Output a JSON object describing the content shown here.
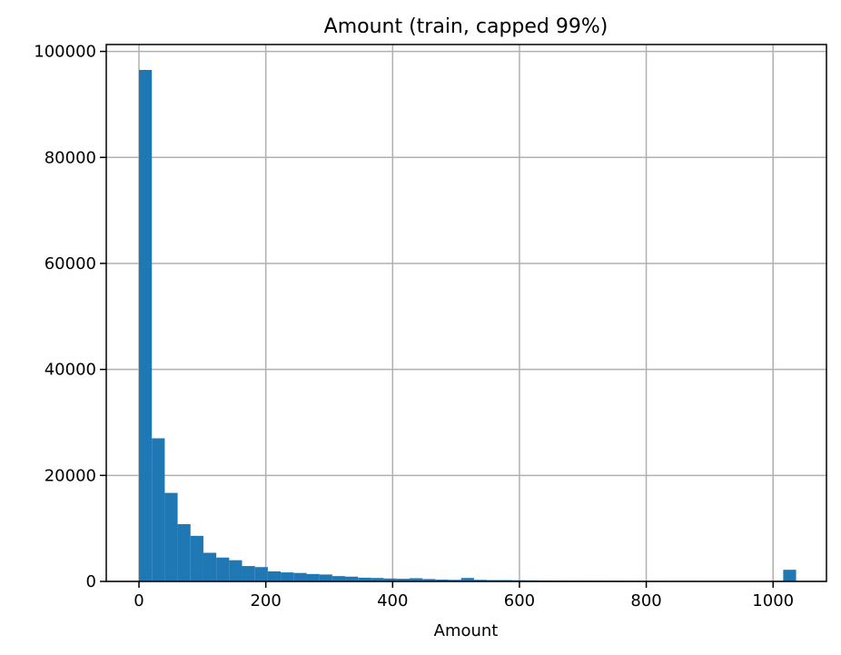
{
  "chart_data": {
    "type": "bar",
    "title": "Amount (train, capped 99%)",
    "xlabel": "Amount",
    "ylabel": "",
    "xlim": [
      -51.6,
      1084.2
    ],
    "ylim": [
      0,
      101300
    ],
    "xticks": [
      0,
      200,
      400,
      600,
      800,
      1000
    ],
    "yticks": [
      0,
      20000,
      40000,
      60000,
      80000,
      100000
    ],
    "grid": true,
    "bar_color": "#1f77b4",
    "bin_width": 20.32,
    "bin_start": 0,
    "series": [
      {
        "values": [
          96500,
          27000,
          16700,
          10800,
          8600,
          5400,
          4500,
          4000,
          2900,
          2700,
          1900,
          1700,
          1600,
          1400,
          1300,
          1000,
          900,
          700,
          650,
          550,
          500,
          600,
          450,
          350,
          300,
          650,
          300,
          250,
          250,
          220,
          200,
          180,
          170,
          160,
          150,
          140,
          130,
          120,
          110,
          100,
          100,
          90,
          90,
          80,
          80,
          70,
          70,
          60,
          60,
          60,
          2200
        ]
      }
    ]
  }
}
